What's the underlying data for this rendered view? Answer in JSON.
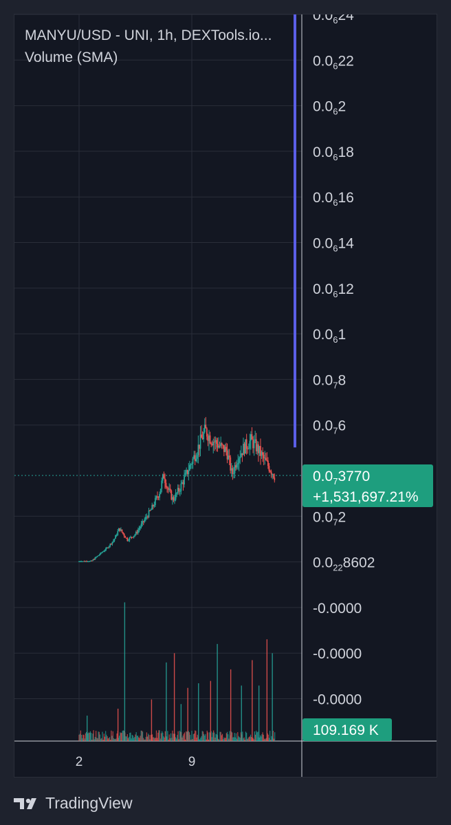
{
  "header": {
    "symbol_title": "MANYU/USD - UNI, 1h, DEXTools.io...",
    "volume_label": "Volume (SMA)"
  },
  "chart_data": {
    "type": "candlestick",
    "price_axis_ticks": [
      {
        "base": "0.0",
        "sub": "6",
        "rest": "24",
        "value": 2.4e-07
      },
      {
        "base": "0.0",
        "sub": "6",
        "rest": "22",
        "value": 2.2e-07
      },
      {
        "base": "0.0",
        "sub": "6",
        "rest": "2",
        "value": 2e-07
      },
      {
        "base": "0.0",
        "sub": "6",
        "rest": "18",
        "value": 1.8e-07
      },
      {
        "base": "0.0",
        "sub": "6",
        "rest": "16",
        "value": 1.6e-07
      },
      {
        "base": "0.0",
        "sub": "6",
        "rest": "14",
        "value": 1.4e-07
      },
      {
        "base": "0.0",
        "sub": "6",
        "rest": "12",
        "value": 1.2e-07
      },
      {
        "base": "0.0",
        "sub": "6",
        "rest": "1",
        "value": 1e-07
      },
      {
        "base": "0.0",
        "sub": "7",
        "rest": "8",
        "value": 8e-08
      },
      {
        "base": "0.0",
        "sub": "7",
        "rest": "6",
        "value": 6e-08
      },
      {
        "base": "0.0",
        "sub": "7",
        "rest": "2",
        "value": 2e-08
      },
      {
        "base": "0.0",
        "sub": "22",
        "rest": "8602",
        "value": 8.602e-24
      },
      {
        "base": "-0.0000",
        "sub": "",
        "rest": "",
        "value": -2e-08
      },
      {
        "base": "-0.0000",
        "sub": "",
        "rest": "",
        "value": -4e-08
      },
      {
        "base": "-0.0000",
        "sub": "",
        "rest": "",
        "value": -6e-08
      }
    ],
    "x_ticks": [
      {
        "label": "2",
        "index": 0
      },
      {
        "label": "9",
        "index": 168
      }
    ],
    "last_price": {
      "base": "0.0",
      "sub": "7",
      "rest": "3770",
      "value": 3.77e-08
    },
    "change_label": "+1,531,697.21%",
    "volume_label": "109.169 K",
    "price_path": [
      [
        0,
        0
      ],
      [
        18,
        0.001
      ],
      [
        30,
        0.3
      ],
      [
        42,
        0.6
      ],
      [
        52,
        0.95
      ],
      [
        60,
        1.45
      ],
      [
        72,
        0.95
      ],
      [
        84,
        1.2
      ],
      [
        96,
        1.75
      ],
      [
        108,
        2.3
      ],
      [
        120,
        3.05
      ],
      [
        126,
        3.8
      ],
      [
        132,
        3.2
      ],
      [
        140,
        2.7
      ],
      [
        150,
        3.2
      ],
      [
        158,
        3.7
      ],
      [
        166,
        4.25
      ],
      [
        174,
        4.75
      ],
      [
        182,
        5.35
      ],
      [
        188,
        5.75
      ],
      [
        196,
        5.4
      ],
      [
        204,
        5.2
      ],
      [
        212,
        5.0
      ],
      [
        220,
        4.85
      ],
      [
        228,
        3.8
      ],
      [
        236,
        4.55
      ],
      [
        246,
        5.0
      ],
      [
        256,
        5.3
      ],
      [
        266,
        4.95
      ],
      [
        276,
        4.45
      ],
      [
        284,
        4.1
      ],
      [
        292,
        3.7
      ]
    ],
    "volume_spikes": [
      [
        12,
        0.55
      ],
      [
        58,
        0.7
      ],
      [
        68,
        3.0
      ],
      [
        108,
        0.9
      ],
      [
        130,
        1.7
      ],
      [
        142,
        1.9
      ],
      [
        152,
        0.8
      ],
      [
        162,
        1.15
      ],
      [
        178,
        1.25
      ],
      [
        196,
        1.3
      ],
      [
        206,
        2.1
      ],
      [
        226,
        1.55
      ],
      [
        242,
        1.2
      ],
      [
        258,
        1.75
      ],
      [
        268,
        1.2
      ],
      [
        280,
        2.2
      ],
      [
        288,
        1.9
      ]
    ],
    "colors": {
      "up": "#26a69a",
      "down": "#ef5350",
      "current_price_line": "#26a69a",
      "vertical_marker": "#5b5fe8",
      "grid": "#2a2e39",
      "axis_text": "#d1d4dc",
      "badge_bg": "#1e9e7e"
    }
  },
  "footer": {
    "brand": "TradingView"
  }
}
